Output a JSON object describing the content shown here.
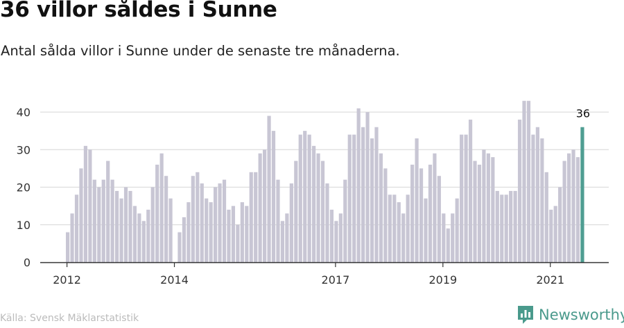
{
  "title": "36 villor såldes i Sunne",
  "subtitle": "Antal sålda villor i Sunne under de senaste tre månaderna.",
  "source": "Källa: Svensk Mäklarstatistik",
  "brand": {
    "name": "Newsworthy",
    "icon": "newsworthy-logo-icon"
  },
  "colors": {
    "bar": "#c8c6d4",
    "highlight": "#4f9e92",
    "grid": "#dddddd",
    "axis": "#333333",
    "text": "#333333"
  },
  "chart_data": {
    "type": "bar",
    "ylim": [
      0,
      43
    ],
    "yticks": [
      0,
      10,
      20,
      30,
      40
    ],
    "xticks": [
      {
        "label": "2012",
        "index": 0
      },
      {
        "label": "2014",
        "index": 24
      },
      {
        "label": "2017",
        "index": 60
      },
      {
        "label": "2019",
        "index": 84
      },
      {
        "label": "2021",
        "index": 108
      }
    ],
    "highlight_label": "36",
    "grid": true,
    "values": [
      8,
      13,
      18,
      25,
      31,
      30,
      22,
      20,
      22,
      27,
      22,
      19,
      17,
      20,
      19,
      15,
      13,
      11,
      14,
      20,
      26,
      29,
      23,
      17,
      0,
      8,
      12,
      16,
      23,
      24,
      21,
      17,
      16,
      20,
      21,
      22,
      14,
      15,
      10,
      16,
      15,
      24,
      24,
      29,
      30,
      39,
      35,
      22,
      11,
      13,
      21,
      27,
      34,
      35,
      34,
      31,
      29,
      27,
      21,
      14,
      11,
      13,
      22,
      34,
      34,
      41,
      36,
      40,
      33,
      36,
      29,
      25,
      18,
      18,
      16,
      13,
      18,
      26,
      33,
      25,
      17,
      26,
      29,
      23,
      13,
      9,
      13,
      17,
      34,
      34,
      38,
      27,
      26,
      30,
      29,
      28,
      19,
      18,
      18,
      19,
      19,
      38,
      43,
      43,
      34,
      36,
      33,
      24,
      14,
      15,
      20,
      27,
      29,
      30,
      28,
      36
    ]
  }
}
